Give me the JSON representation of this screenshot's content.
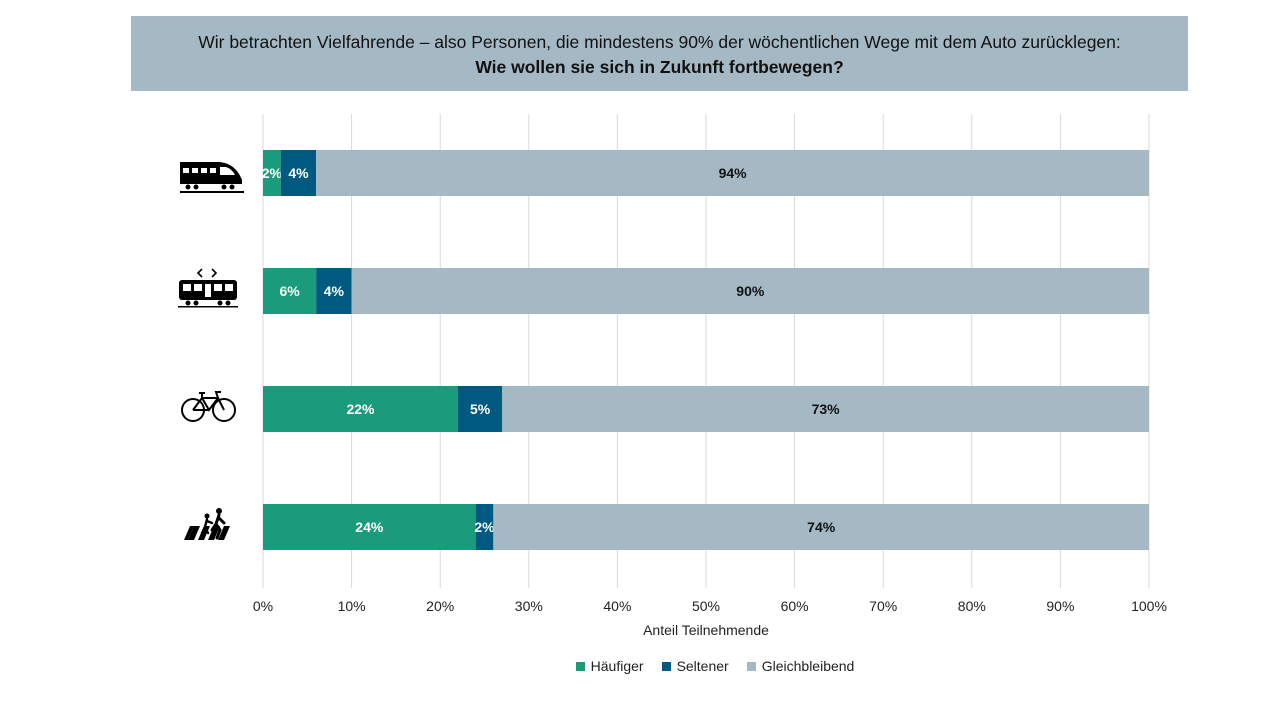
{
  "header": {
    "line1": "Wir betrachten Vielfahrende – also Personen, die mindestens 90% der wöchentlichen Wege mit dem Auto zurücklegen:",
    "line2": "Wie wollen sie sich in Zukunft fortbewegen?"
  },
  "colors": {
    "haeufiger": "#1a9b7c",
    "seltener": "#005a80",
    "gleichbleibend": "#a5b9c5",
    "grid": "#d9d9d9"
  },
  "chart_data": {
    "type": "bar",
    "orientation": "horizontal",
    "stacked": true,
    "categories": [
      "train-icon",
      "tram-icon",
      "bicycle-icon",
      "pedestrian-icon"
    ],
    "series": [
      {
        "name": "Häufiger",
        "values": [
          2,
          6,
          22,
          24
        ],
        "labels": [
          "2%",
          "6%",
          "22%",
          "24%"
        ]
      },
      {
        "name": "Seltener",
        "values": [
          4,
          4,
          5,
          2
        ],
        "labels": [
          "4%",
          "4%",
          "5%",
          "2%"
        ]
      },
      {
        "name": "Gleichbleibend",
        "values": [
          94,
          90,
          73,
          74
        ],
        "labels": [
          "94%",
          "90%",
          "73%",
          "74%"
        ]
      }
    ],
    "xlabel": "Anteil Teilnehmende",
    "xlim": [
      0,
      100
    ],
    "xticks": [
      "0%",
      "10%",
      "20%",
      "30%",
      "40%",
      "50%",
      "60%",
      "70%",
      "80%",
      "90%",
      "100%"
    ],
    "grid": true,
    "legend_position": "bottom"
  }
}
